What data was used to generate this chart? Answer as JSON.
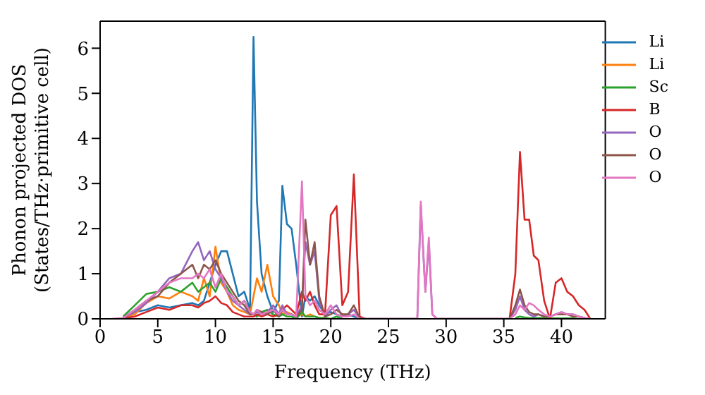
{
  "chart_data": {
    "type": "line",
    "xlabel": "Frequency (THz)",
    "ylabel": "Phonon projected DOS\n(States/THz·primitive cell)",
    "xlim": [
      0,
      43.8
    ],
    "ylim": [
      0,
      6.6
    ],
    "xticks": [
      0,
      5,
      10,
      15,
      20,
      25,
      30,
      35,
      40
    ],
    "yticks": [
      0,
      1,
      2,
      3,
      4,
      5,
      6
    ],
    "legend": "top right",
    "line_style": "solid",
    "x": [
      1,
      2,
      3,
      4,
      5,
      6,
      7,
      8,
      8.5,
      9,
      9.5,
      10,
      10.5,
      11,
      11.5,
      12,
      12.5,
      13,
      13.3,
      13.6,
      14,
      14.5,
      15,
      15.5,
      15.8,
      16.2,
      16.6,
      17,
      17.5,
      17.8,
      18.2,
      18.6,
      19,
      19.5,
      20,
      20.5,
      21,
      21.5,
      22,
      22.5,
      23,
      27.5,
      27.8,
      28.2,
      28.5,
      28.8,
      29.2,
      35.5,
      36,
      36.4,
      36.8,
      37.2,
      37.6,
      38,
      38.5,
      39,
      39.5,
      40,
      40.5,
      41,
      41.5,
      42,
      42.5
    ],
    "series": [
      {
        "name": "Li",
        "color": "#1f77b4",
        "values": [
          null,
          0.02,
          0.15,
          0.2,
          0.3,
          0.25,
          0.3,
          0.35,
          0.3,
          0.4,
          0.8,
          1.2,
          1.5,
          1.5,
          1.0,
          0.5,
          0.6,
          0.2,
          6.25,
          2.6,
          1.0,
          0.5,
          0.15,
          0.4,
          2.95,
          2.1,
          2.0,
          1.2,
          0.05,
          0.5,
          0.4,
          0.5,
          0.3,
          0.1,
          0.15,
          0.1,
          0.05,
          0.1,
          0.05,
          0,
          null,
          null,
          null,
          null,
          null,
          null,
          null,
          null,
          null,
          null,
          null,
          null,
          null,
          null,
          null,
          null,
          null,
          null,
          null,
          null,
          null,
          null,
          null
        ]
      },
      {
        "name": "Li",
        "color": "#ff7f0e",
        "values": [
          null,
          0.02,
          0.1,
          0.35,
          0.5,
          0.45,
          0.6,
          0.5,
          0.4,
          0.9,
          0.5,
          1.6,
          0.8,
          0.6,
          0.3,
          0.2,
          0.15,
          0.1,
          0.5,
          0.9,
          0.6,
          1.2,
          0.5,
          0.3,
          0.1,
          0.15,
          0.1,
          0.05,
          0.1,
          0.05,
          0.1,
          0.05,
          0.02,
          0.02,
          null,
          null,
          null,
          null,
          null,
          null,
          null,
          null,
          null,
          null,
          null,
          null,
          null,
          null,
          null,
          null,
          null,
          null,
          null,
          null,
          null,
          null,
          null,
          null,
          null,
          null,
          null,
          null,
          null
        ]
      },
      {
        "name": "Sc",
        "color": "#2ca02c",
        "values": [
          null,
          0.05,
          0.3,
          0.55,
          0.6,
          0.7,
          0.6,
          0.8,
          0.6,
          0.7,
          0.8,
          0.6,
          0.9,
          0.7,
          0.5,
          0.3,
          0.4,
          0.15,
          0.1,
          0.05,
          0.15,
          0.2,
          0.1,
          0.05,
          0.1,
          0.05,
          0.05,
          0,
          0.15,
          0.05,
          0.05,
          0.05,
          0.02,
          0.02,
          0,
          0.05,
          0,
          null,
          null,
          null,
          null,
          null,
          null,
          null,
          null,
          null,
          null,
          null,
          0.02,
          0.05,
          0.03,
          0.02,
          0.02,
          0.02,
          0.02,
          0.01,
          0.01,
          0.01,
          0.01,
          0.01,
          0,
          0,
          0
        ]
      },
      {
        "name": "B",
        "color": "#d62728",
        "values": [
          null,
          0.01,
          0.05,
          0.15,
          0.25,
          0.2,
          0.3,
          0.3,
          0.25,
          0.35,
          0.4,
          0.5,
          0.35,
          0.3,
          0.15,
          0.1,
          0.05,
          0.05,
          0.05,
          0.1,
          0.05,
          0.1,
          0.05,
          0.1,
          0.2,
          0.3,
          0.2,
          0.1,
          0.6,
          0.4,
          0.6,
          0.3,
          0.1,
          0.1,
          2.3,
          2.5,
          0.3,
          0.6,
          3.2,
          0.05,
          0,
          null,
          null,
          null,
          null,
          null,
          null,
          0,
          1.0,
          3.7,
          2.2,
          2.2,
          1.4,
          1.3,
          0.4,
          0,
          0.8,
          0.9,
          0.6,
          0.5,
          0.3,
          0.2,
          0
        ]
      },
      {
        "name": "O",
        "color": "#9467bd",
        "values": [
          null,
          0.02,
          0.15,
          0.35,
          0.6,
          0.9,
          1.0,
          1.5,
          1.7,
          1.3,
          1.5,
          1.1,
          0.9,
          0.6,
          0.4,
          0.3,
          0.2,
          0.1,
          0.1,
          0.15,
          0.1,
          0.15,
          0.3,
          0.1,
          0.3,
          0.1,
          0.1,
          0.05,
          0.3,
          1.7,
          1.2,
          1.5,
          0.4,
          0.05,
          0.2,
          0.3,
          0.05,
          0.1,
          0.2,
          0.02,
          0,
          0,
          2.5,
          0.6,
          1.7,
          0.1,
          0,
          0,
          0.2,
          0.5,
          0.2,
          0.1,
          0.05,
          0.1,
          0.05,
          0.05,
          0.1,
          0.15,
          0.1,
          0.1,
          0.05,
          0.02,
          0
        ]
      },
      {
        "name": "O",
        "color": "#8c564b",
        "values": [
          null,
          0.02,
          0.2,
          0.4,
          0.5,
          0.8,
          1.0,
          1.2,
          0.9,
          1.2,
          1.1,
          1.3,
          1.0,
          0.8,
          0.6,
          0.4,
          0.3,
          0.1,
          0.1,
          0.2,
          0.15,
          0.1,
          0.2,
          0.05,
          0.2,
          0.1,
          0.1,
          0.05,
          0.2,
          2.2,
          1.2,
          1.7,
          0.5,
          0.05,
          0.1,
          0.2,
          0.1,
          0.1,
          0.3,
          0.02,
          0,
          0,
          null,
          null,
          null,
          null,
          0,
          0,
          0.3,
          0.65,
          0.3,
          0.15,
          0.1,
          0.1,
          0.05,
          0.05,
          0.1,
          0.1,
          0.1,
          0.05,
          0.05,
          0.02,
          0
        ]
      },
      {
        "name": "O",
        "color": "#e377c2",
        "values": [
          0,
          0.02,
          0.2,
          0.4,
          0.6,
          0.8,
          0.9,
          0.9,
          1.0,
          0.9,
          1.1,
          0.7,
          1.0,
          0.6,
          0.5,
          0.3,
          0.4,
          0.15,
          0.1,
          0.2,
          0.1,
          0.15,
          0.2,
          0.1,
          0.2,
          0.1,
          0.1,
          0.05,
          3.05,
          0.5,
          0.3,
          0.4,
          0.2,
          0.1,
          0.3,
          0.1,
          0.05,
          0.05,
          0.1,
          0,
          0,
          0,
          2.6,
          0.6,
          1.8,
          0.1,
          0,
          0,
          0.1,
          0.3,
          0.2,
          0.35,
          0.3,
          0.2,
          0.1,
          0.05,
          0.1,
          0.15,
          0.1,
          0.1,
          0.05,
          0.02,
          0
        ]
      }
    ]
  }
}
